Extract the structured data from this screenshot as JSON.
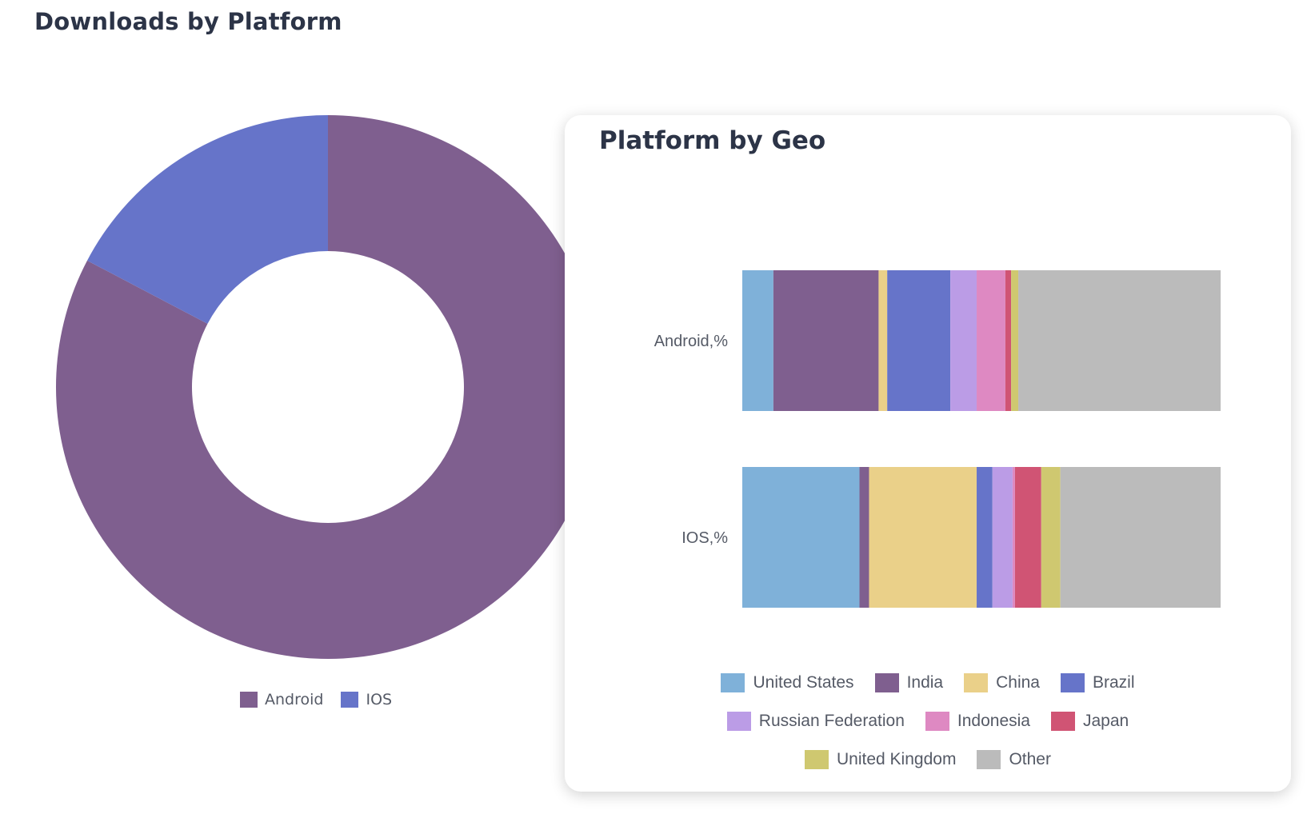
{
  "header": {
    "title": "Downloads by Platform"
  },
  "card": {
    "title": "Platform by Geo"
  },
  "chart_data": [
    {
      "type": "pie",
      "variant": "donut",
      "title": "Downloads by Platform",
      "categories": [
        "Android",
        "IOS"
      ],
      "values": [
        82.7,
        17.3
      ],
      "colors": [
        "#7f5f8f",
        "#6674c9"
      ],
      "legend": "bottom"
    },
    {
      "type": "bar",
      "orientation": "horizontal",
      "stacked": true,
      "normalized": true,
      "title": "Platform by Geo",
      "categories": [
        "Android,%",
        "IOS,%"
      ],
      "legend": "bottom",
      "series": [
        {
          "name": "United States",
          "color": "#7fb1d9",
          "values": [
            6.5,
            24.5
          ]
        },
        {
          "name": "India",
          "color": "#7f5f8f",
          "values": [
            22.0,
            2.0
          ]
        },
        {
          "name": "China",
          "color": "#ead089",
          "values": [
            1.8,
            22.5
          ]
        },
        {
          "name": "Brazil",
          "color": "#6674c9",
          "values": [
            13.2,
            3.3
          ]
        },
        {
          "name": "Russian Federation",
          "color": "#bb9ce6",
          "values": [
            5.5,
            4.2
          ]
        },
        {
          "name": "Indonesia",
          "color": "#de89c2",
          "values": [
            6.0,
            0.5
          ]
        },
        {
          "name": "Japan",
          "color": "#d05474",
          "values": [
            1.2,
            5.5
          ]
        },
        {
          "name": "United Kingdom",
          "color": "#cfc870",
          "values": [
            1.5,
            4.0
          ]
        },
        {
          "name": "Other",
          "color": "#bbbbbb",
          "values": [
            42.3,
            33.5
          ]
        }
      ]
    }
  ]
}
